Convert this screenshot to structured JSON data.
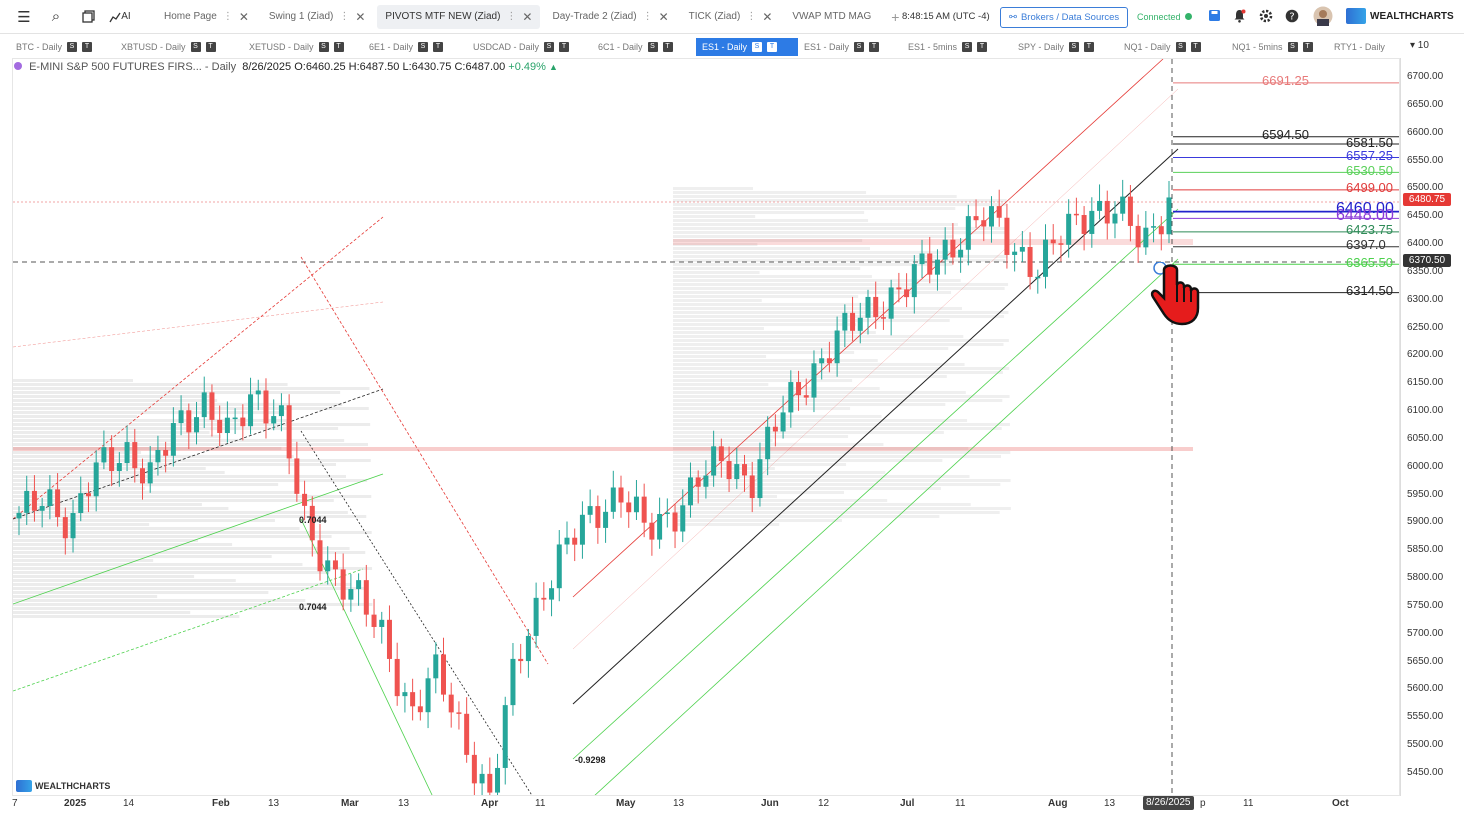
{
  "topbar": {
    "tabs": [
      {
        "label": "Home Page",
        "active": false
      },
      {
        "label": "Swing 1 (Ziad)",
        "active": false
      },
      {
        "label": "PIVOTS MTF NEW (Ziad)",
        "active": true
      },
      {
        "label": "Day-Trade 2 (Ziad)",
        "active": false
      },
      {
        "label": "TICK (Ziad)",
        "active": false
      },
      {
        "label": "VWAP MTD MAG",
        "active": false
      }
    ],
    "add_tab": "+",
    "clock": "8:48:15 AM  (UTC -4)",
    "brokers_label": "Brokers / Data Sources",
    "connected_label": "Connected",
    "logo_text": "WEALTHCHARTS",
    "menu_icon": "☰",
    "search_icon": "⌕",
    "ai_label": "AI"
  },
  "symbols": [
    {
      "label": "BTC - Daily",
      "active": false
    },
    {
      "label": "XBTUSD - Daily",
      "active": false
    },
    {
      "label": "XETUSD - Daily",
      "active": false
    },
    {
      "label": "6E1 - Daily",
      "active": false
    },
    {
      "label": "USDCAD - Daily",
      "active": false
    },
    {
      "label": "6C1 - Daily",
      "active": false
    },
    {
      "label": "ES1 - Daily",
      "active": true
    },
    {
      "label": "ES1 - Daily",
      "active": false
    },
    {
      "label": "ES1 - 5mins",
      "active": false
    },
    {
      "label": "SPY - Daily",
      "active": false
    },
    {
      "label": "NQ1 - Daily",
      "active": false
    },
    {
      "label": "NQ1 - 5mins",
      "active": false
    },
    {
      "label": "RTY1 - Daily",
      "active": false
    }
  ],
  "badges": {
    "s": "S",
    "t": "T"
  },
  "grid_count": "▾ 10",
  "chart": {
    "title": "E-MINI S&P 500 FUTURES FIRS...",
    "interval": "- Daily",
    "date": "8/26/2025",
    "open": "O:6460.25",
    "high": "H:6487.50",
    "low": "L:6430.75",
    "close": "C:6487.00",
    "change": "+0.49%",
    "watermark": "WEALTHCHARTS"
  },
  "chart_data": {
    "type": "candlestick",
    "title": "E-MINI S&P 500 FUTURES FIRS...",
    "ylim": [
      5400,
      6720
    ],
    "y_ticks": [
      "6700.00",
      "6650.00",
      "6600.00",
      "6550.00",
      "6500.00",
      "6450.00",
      "6400.00",
      "6350.00",
      "6300.00",
      "6250.00",
      "6200.00",
      "6150.00",
      "6100.00",
      "6050.00",
      "6000.00",
      "5950.00",
      "5900.00",
      "5850.00",
      "5800.00",
      "5750.00",
      "5700.00",
      "5650.00",
      "5600.00",
      "5550.00",
      "5500.00",
      "5450.00"
    ],
    "x_ticks": [
      "7",
      "2025",
      "14",
      "Feb",
      "13",
      "Mar",
      "13",
      "Apr",
      "11",
      "May",
      "13",
      "Jun",
      "12",
      "Jul",
      "11",
      "Aug",
      "13",
      "8/26/2025",
      "p",
      "11",
      "Oct"
    ],
    "price_levels": [
      {
        "value": 6691.25,
        "label": "6691.25",
        "color": "#e87a7a"
      },
      {
        "value": 6594.5,
        "label": "6594.50",
        "color": "#222222"
      },
      {
        "value": 6581.5,
        "label": "6581.50",
        "color": "#222222"
      },
      {
        "value": 6557.25,
        "label": "6557.25",
        "color": "#3a3adc"
      },
      {
        "value": 6530.5,
        "label": "6530.50",
        "color": "#5ad15a"
      },
      {
        "value": 6499.0,
        "label": "6499.00",
        "color": "#e03b3b"
      },
      {
        "value": 6460.0,
        "label": "6460.00",
        "color": "#2222cc"
      },
      {
        "value": 6448.0,
        "label": "6448.00",
        "color": "#8a3ad8"
      },
      {
        "value": 6423.75,
        "label": "6423.75",
        "color": "#2e8b57"
      },
      {
        "value": 6397.0,
        "label": "6397.0",
        "color": "#333333"
      },
      {
        "value": 6365.5,
        "label": "6365.50",
        "color": "#4cd14c"
      },
      {
        "value": 6314.5,
        "label": "6314.50",
        "color": "#222222"
      }
    ],
    "last_price": {
      "value": 6480.75,
      "label": "6480.75",
      "color": "#e53935"
    },
    "crosshair_price": {
      "value": 6370.5,
      "label": "6370.50"
    },
    "crosshair_date": "8/26/2025",
    "fib_labels": [
      "0.7044",
      "0.7044",
      "-0.9298"
    ],
    "candles_close_path": [
      5905,
      5960,
      5890,
      6000,
      6040,
      5975,
      6080,
      6120,
      6050,
      6140,
      6090,
      5880,
      5820,
      5760,
      5690,
      5560,
      5630,
      5520,
      5400,
      5650,
      5780,
      5860,
      5920,
      5960,
      5880,
      5920,
      5980,
      6010,
      5980,
      6080,
      6150,
      6220,
      6260,
      6300,
      6330,
      6370,
      6420,
      6450,
      6400,
      6360,
      6420,
      6470,
      6460,
      6400,
      6487
    ]
  }
}
